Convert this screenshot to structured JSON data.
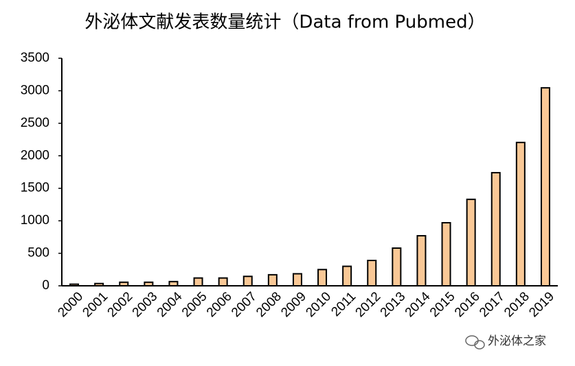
{
  "chart_data": {
    "type": "bar",
    "title": "外泌体文献发表数量统计（Data from Pubmed）",
    "categories": [
      "2000",
      "2001",
      "2002",
      "2003",
      "2004",
      "2005",
      "2006",
      "2007",
      "2008",
      "2009",
      "2010",
      "2011",
      "2012",
      "2013",
      "2014",
      "2015",
      "2016",
      "2017",
      "2018",
      "2019"
    ],
    "values": [
      25,
      35,
      55,
      55,
      65,
      120,
      120,
      145,
      170,
      185,
      250,
      300,
      390,
      580,
      770,
      970,
      1330,
      1740,
      2205,
      3045
    ],
    "color": "#f9c896",
    "ylim": [
      0,
      3500
    ],
    "yticks": [
      0,
      500,
      1000,
      1500,
      2000,
      2500,
      3000,
      3500
    ],
    "grid": false,
    "watermark": "外泌体之家"
  }
}
